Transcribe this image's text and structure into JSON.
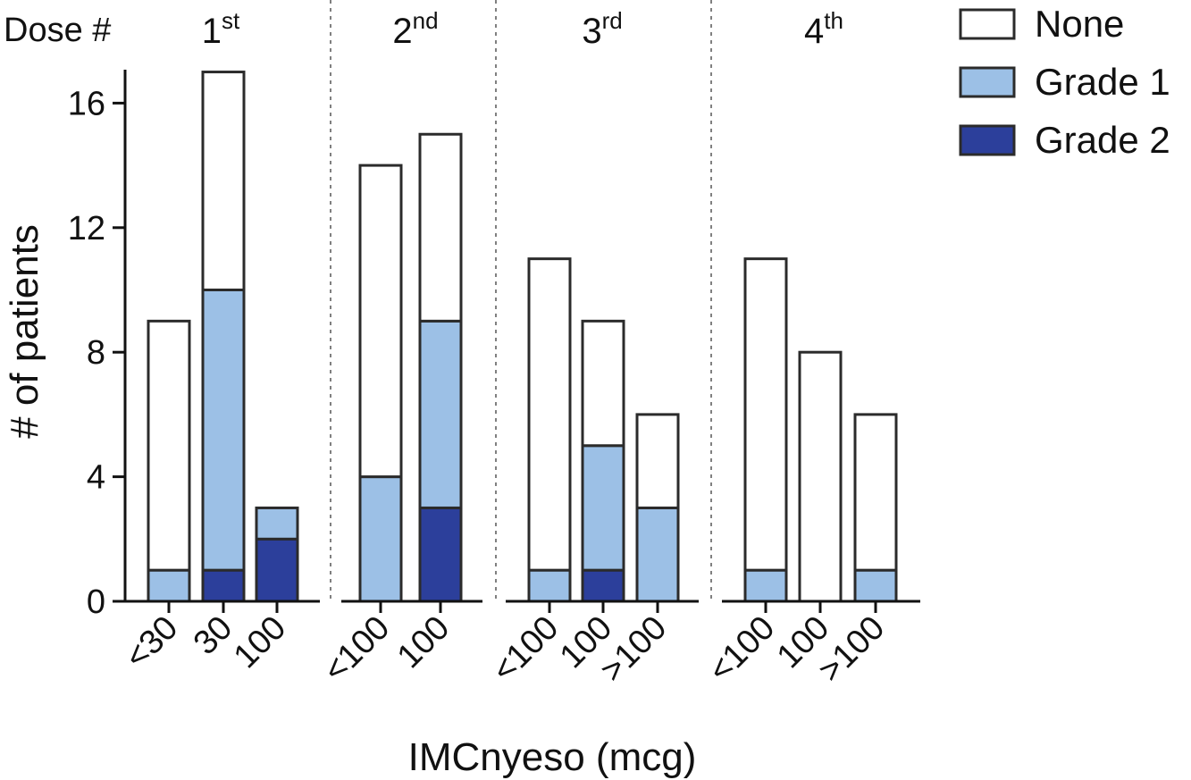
{
  "chart_data": {
    "type": "bar",
    "stacked": true,
    "title": "",
    "xlabel": "IMCnyeso (mcg)",
    "ylabel": "# of patients",
    "ylim": [
      0,
      17
    ],
    "yticks": [
      0,
      4,
      8,
      12,
      16
    ],
    "grid": false,
    "legend_position": "top-right",
    "dose_label": "Dose #",
    "colors": {
      "None": "#ffffff",
      "Grade 1": "#9cc0e6",
      "Grade 2": "#2c3f9b",
      "stroke": "#2b2b2b"
    },
    "legend": [
      "None",
      "Grade 1",
      "Grade 2"
    ],
    "groups": [
      {
        "label": "1",
        "suffix": "st",
        "bars": [
          {
            "category": "<30",
            "None": 8,
            "Grade 1": 1,
            "Grade 2": 0
          },
          {
            "category": "30",
            "None": 7,
            "Grade 1": 9,
            "Grade 2": 1
          },
          {
            "category": "100",
            "None": 0,
            "Grade 1": 1,
            "Grade 2": 2
          }
        ]
      },
      {
        "label": "2",
        "suffix": "nd",
        "bars": [
          {
            "category": "<100",
            "None": 10,
            "Grade 1": 4,
            "Grade 2": 0
          },
          {
            "category": "100",
            "None": 6,
            "Grade 1": 6,
            "Grade 2": 3
          }
        ]
      },
      {
        "label": "3",
        "suffix": "rd",
        "bars": [
          {
            "category": "<100",
            "None": 10,
            "Grade 1": 1,
            "Grade 2": 0
          },
          {
            "category": "100",
            "None": 4,
            "Grade 1": 4,
            "Grade 2": 1
          },
          {
            "category": ">100",
            "None": 3,
            "Grade 1": 3,
            "Grade 2": 0
          }
        ]
      },
      {
        "label": "4",
        "suffix": "th",
        "bars": [
          {
            "category": "<100",
            "None": 10,
            "Grade 1": 1,
            "Grade 2": 0
          },
          {
            "category": "100",
            "None": 8,
            "Grade 1": 0,
            "Grade 2": 0
          },
          {
            "category": ">100",
            "None": 5,
            "Grade 1": 1,
            "Grade 2": 0
          }
        ]
      }
    ]
  }
}
